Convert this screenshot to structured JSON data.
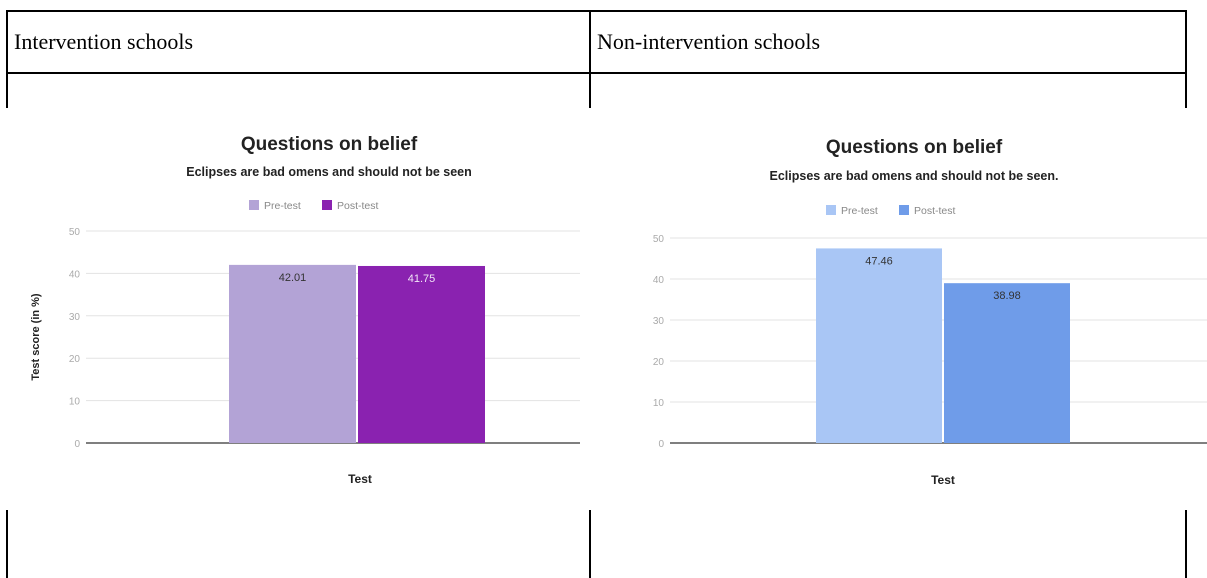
{
  "table": {
    "headers": [
      "Intervention schools",
      "Non-intervention schools"
    ]
  },
  "colors": {
    "left_pre": "#b3a3d6",
    "left_post": "#8a22b0",
    "right_pre": "#a9c6f5",
    "right_post": "#6f9ce9"
  },
  "chart_data": [
    {
      "type": "bar",
      "title": "Questions on belief",
      "subtitle": "Eclipses are bad omens and should not be seen",
      "xlabel": "Test",
      "ylabel": "Test score (in %)",
      "ylim": [
        0,
        50
      ],
      "yticks": [
        "0",
        "10",
        "20",
        "30",
        "40",
        "50"
      ],
      "grid": true,
      "legend": "top",
      "series": [
        {
          "name": "Pre-test",
          "values": [
            42.01
          ],
          "label": "42.01",
          "color": "#b3a3d6"
        },
        {
          "name": "Post-test",
          "values": [
            41.75
          ],
          "label": "41.75",
          "color": "#8a22b0"
        }
      ]
    },
    {
      "type": "bar",
      "title": "Questions on belief",
      "subtitle": "Eclipses are bad omens and should not be seen.",
      "xlabel": "Test",
      "ylabel": "",
      "ylim": [
        0,
        50
      ],
      "yticks": [
        "0",
        "10",
        "20",
        "30",
        "40",
        "50"
      ],
      "grid": true,
      "legend": "top",
      "series": [
        {
          "name": "Pre-test",
          "values": [
            47.46
          ],
          "label": "47.46",
          "color": "#a9c6f5"
        },
        {
          "name": "Post-test",
          "values": [
            38.98
          ],
          "label": "38.98",
          "color": "#6f9ce9"
        }
      ]
    }
  ]
}
